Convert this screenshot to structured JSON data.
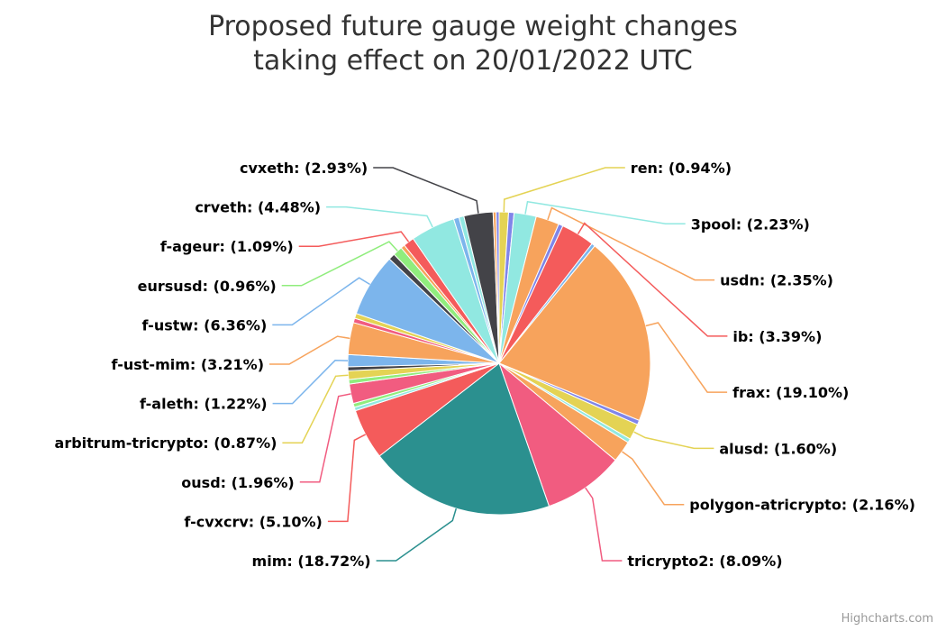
{
  "chart_data": {
    "type": "pie",
    "title_lines": [
      "Proposed future gauge weight changes",
      "taking effect on 20/01/2022 UTC"
    ],
    "label_format": "{name}: ({pct}%)",
    "slices": [
      {
        "name": "ren",
        "value": 0.94,
        "color": "#e4d354",
        "label": "ren: (0.94%)"
      },
      {
        "name": "",
        "value": 0.55,
        "color": "#8085e9",
        "label": ""
      },
      {
        "name": "3pool",
        "value": 2.23,
        "color": "#91e8e1",
        "label": "3pool: (2.23%)"
      },
      {
        "name": "usdn",
        "value": 2.35,
        "color": "#f7a35c",
        "label": "usdn: (2.35%)"
      },
      {
        "name": "",
        "value": 0.45,
        "color": "#8085e9",
        "label": ""
      },
      {
        "name": "ib",
        "value": 3.39,
        "color": "#f45b5b",
        "label": "ib: (3.39%)"
      },
      {
        "name": "",
        "value": 0.35,
        "color": "#7cb5ec",
        "label": ""
      },
      {
        "name": "frax",
        "value": 19.1,
        "color": "#f7a35c",
        "label": "frax: (19.10%)"
      },
      {
        "name": "",
        "value": 0.45,
        "color": "#8085e9",
        "label": ""
      },
      {
        "name": "alusd",
        "value": 1.6,
        "color": "#e4d354",
        "label": "alusd: (1.60%)"
      },
      {
        "name": "",
        "value": 0.4,
        "color": "#91e8e1",
        "label": ""
      },
      {
        "name": "polygon-atricrypto",
        "value": 2.16,
        "color": "#f7a35c",
        "label": "polygon-atricrypto: (2.16%)"
      },
      {
        "name": "tricrypto2",
        "value": 8.09,
        "color": "#f15c80",
        "label": "tricrypto2: (8.09%)"
      },
      {
        "name": "mim",
        "value": 18.72,
        "color": "#2b908f",
        "label": "mim: (18.72%)"
      },
      {
        "name": "f-cvxcrv",
        "value": 5.1,
        "color": "#f45b5b",
        "label": "f-cvxcrv: (5.10%)"
      },
      {
        "name": "",
        "value": 0.35,
        "color": "#91e8e1",
        "label": ""
      },
      {
        "name": "",
        "value": 0.4,
        "color": "#90ed7d",
        "label": ""
      },
      {
        "name": "ousd",
        "value": 1.96,
        "color": "#f15c80",
        "label": "ousd: (1.96%)"
      },
      {
        "name": "",
        "value": 0.45,
        "color": "#90ed7d",
        "label": ""
      },
      {
        "name": "arbitrum-tricrypto",
        "value": 0.87,
        "color": "#e4d354",
        "label": "arbitrum-tricrypto: (0.87%)"
      },
      {
        "name": "",
        "value": 0.4,
        "color": "#434348",
        "label": ""
      },
      {
        "name": "f-aleth",
        "value": 1.22,
        "color": "#7cb5ec",
        "label": "f-aleth: (1.22%)"
      },
      {
        "name": "f-ust-mim",
        "value": 3.21,
        "color": "#f7a35c",
        "label": "f-ust-mim: (3.21%)"
      },
      {
        "name": "",
        "value": 0.45,
        "color": "#f15c80",
        "label": ""
      },
      {
        "name": "",
        "value": 0.5,
        "color": "#e4d354",
        "label": ""
      },
      {
        "name": "f-ustw",
        "value": 6.36,
        "color": "#7cb5ec",
        "label": "f-ustw: (6.36%)"
      },
      {
        "name": "",
        "value": 0.65,
        "color": "#434348",
        "label": ""
      },
      {
        "name": "eursusd",
        "value": 0.96,
        "color": "#90ed7d",
        "label": "eursusd: (0.96%)"
      },
      {
        "name": "",
        "value": 0.4,
        "color": "#f7a35c",
        "label": ""
      },
      {
        "name": "f-ageur",
        "value": 1.09,
        "color": "#f45b5b",
        "label": "f-ageur: (1.09%)"
      },
      {
        "name": "crveth",
        "value": 4.48,
        "color": "#91e8e1",
        "label": "crveth: (4.48%)"
      },
      {
        "name": "",
        "value": 0.55,
        "color": "#7cb5ec",
        "label": ""
      },
      {
        "name": "",
        "value": 0.5,
        "color": "#91e8e1",
        "label": ""
      },
      {
        "name": "cvxeth",
        "value": 2.93,
        "color": "#434348",
        "label": "cvxeth: (2.93%)"
      },
      {
        "name": "",
        "value": 0.3,
        "color": "#f7a35c",
        "label": ""
      },
      {
        "name": "",
        "value": 0.3,
        "color": "#8085e9",
        "label": ""
      }
    ]
  },
  "credits": "Highcharts.com"
}
